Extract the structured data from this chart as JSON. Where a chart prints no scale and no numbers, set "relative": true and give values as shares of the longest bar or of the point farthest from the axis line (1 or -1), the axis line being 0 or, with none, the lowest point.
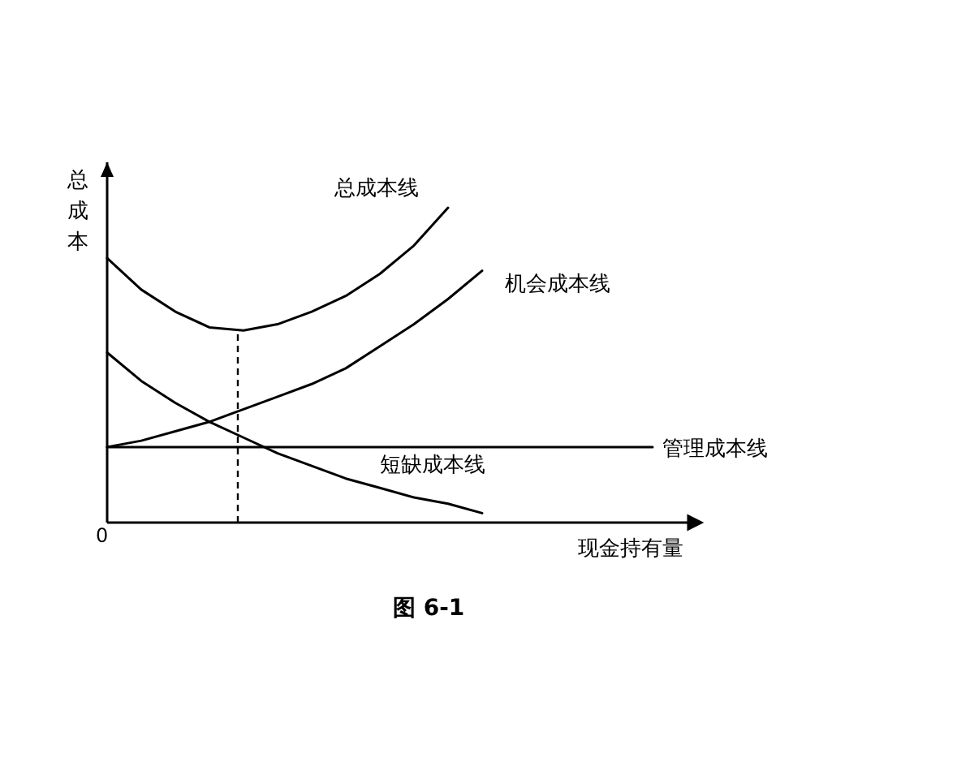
{
  "chart_data": {
    "type": "line",
    "title": "图 6-1",
    "xlabel": "现金持有量",
    "ylabel": "总成本",
    "relative": true,
    "categories": [
      null,
      null,
      null,
      null,
      null,
      null,
      null,
      null,
      null,
      null,
      null,
      null,
      null,
      null,
      null,
      null,
      null
    ],
    "series": [
      {
        "name": "总成本线",
        "color": "#000000",
        "values": [
          0.84,
          0.74,
          0.67,
          0.62,
          0.61,
          0.63,
          0.67,
          0.72,
          0.79,
          0.88,
          1,
          null,
          null,
          null,
          null,
          null,
          null
        ]
      },
      {
        "name": "机会成本线",
        "color": "#000000",
        "values": [
          0.24,
          0.26,
          0.29,
          0.32,
          0.36,
          0.4,
          0.44,
          0.49,
          0.56,
          0.63,
          0.71,
          0.8,
          null,
          null,
          null,
          null,
          null
        ]
      },
      {
        "name": "管理成本线",
        "color": "#000000",
        "values": [
          0.24,
          0.24,
          0.24,
          0.24,
          0.24,
          0.24,
          0.24,
          0.24,
          0.24,
          0.24,
          0.24,
          0.24,
          0.24,
          0.24,
          0.24,
          0.24,
          0.24
        ]
      },
      {
        "name": "短缺成本线",
        "color": "#000000",
        "values": [
          0.54,
          0.45,
          0.38,
          0.32,
          0.27,
          0.22,
          0.18,
          0.14,
          0.11,
          0.08,
          0.06,
          0.03,
          null,
          null,
          null,
          null,
          null
        ]
      }
    ],
    "annotations": [
      "0"
    ]
  }
}
